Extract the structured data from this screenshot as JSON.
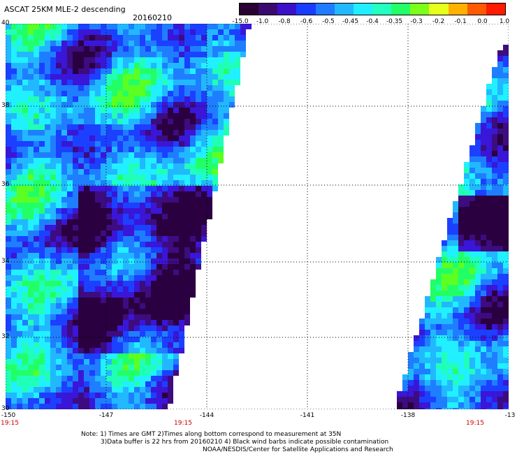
{
  "header": {
    "title": "ASCAT 25KM MLE-2 descending",
    "date": "20160210"
  },
  "colorbar": {
    "labels": [
      "-15.0",
      "-1.0",
      "-0.8",
      "-0.6",
      "-0.5",
      "-0.45",
      "-0.4",
      "-0.35",
      "-0.3",
      "-0.2",
      "-0.1",
      "0.0",
      "1.0"
    ],
    "colors": [
      "#2b0033",
      "#3b0a6e",
      "#3a10c8",
      "#1a3cff",
      "#1f7bff",
      "#22b8ff",
      "#21eeff",
      "#22ffc0",
      "#22ff66",
      "#7cff1a",
      "#e8ff1a",
      "#ffb000",
      "#ff5a00",
      "#ff1a00"
    ]
  },
  "map": {
    "lat_labels": [
      "40",
      "38",
      "36",
      "34",
      "32",
      "30"
    ],
    "lon_labels": [
      "-150",
      "-147",
      "-144",
      "-141",
      "-138",
      "-13"
    ],
    "time_labels": [
      "19:15",
      "19:15",
      "19:15"
    ],
    "palette": [
      "#2a0040",
      "#3d0c80",
      "#3a16d8",
      "#1c40ff",
      "#1f7eff",
      "#22b8ff",
      "#20f0ff",
      "#20ffb8",
      "#22ff66",
      "#5cff22"
    ]
  },
  "footer": {
    "note_line1": "Note: 1) Times are GMT 2)Times along bottom correspond to measurement at 35N",
    "note_line2": "3)Data buffer is 22 hrs from 20160210 4) Black wind barbs indicate possible contamination",
    "note_line3": "NOAA/NESDIS/Center for Satellite Applications and Research"
  }
}
